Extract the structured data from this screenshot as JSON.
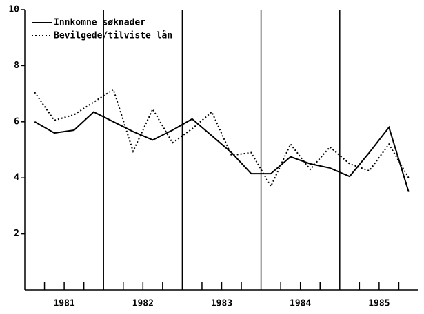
{
  "chart_data": {
    "type": "line",
    "x": [
      1981.125,
      1981.375,
      1981.625,
      1981.875,
      1982.125,
      1982.375,
      1982.625,
      1982.875,
      1983.125,
      1983.375,
      1983.625,
      1983.875,
      1984.125,
      1984.375,
      1984.625,
      1984.875,
      1985.125,
      1985.375,
      1985.625,
      1985.875
    ],
    "series": [
      {
        "name": "Innkomne søknader",
        "color": "#000000",
        "dash": "solid",
        "values": [
          6.0,
          5.6,
          5.7,
          6.35,
          6.0,
          5.65,
          5.35,
          5.7,
          6.1,
          5.5,
          4.9,
          4.15,
          4.15,
          4.75,
          4.5,
          4.35,
          4.05,
          4.9,
          5.8,
          3.5
        ]
      },
      {
        "name": "Bevilgede/tilviste lån",
        "color": "#000000",
        "dash": "dotted",
        "values": [
          7.05,
          6.05,
          6.25,
          6.7,
          7.15,
          4.95,
          6.45,
          5.25,
          5.75,
          6.35,
          4.8,
          4.9,
          3.7,
          5.2,
          4.3,
          5.1,
          4.5,
          4.25,
          5.2,
          4.0
        ]
      }
    ],
    "xlim": [
      1981,
      1986
    ],
    "xticks": [
      {
        "value": 1981.5,
        "label": "1981"
      },
      {
        "value": 1982.5,
        "label": "1982"
      },
      {
        "value": 1983.5,
        "label": "1983"
      },
      {
        "value": 1984.5,
        "label": "1984"
      },
      {
        "value": 1985.5,
        "label": "1985"
      }
    ],
    "xminorticks": [
      1981.25,
      1981.5,
      1981.75,
      1982.25,
      1982.5,
      1982.75,
      1983.25,
      1983.5,
      1983.75,
      1984.25,
      1984.5,
      1984.75,
      1985.25,
      1985.5,
      1985.75
    ],
    "vlines": [
      1982,
      1983,
      1984,
      1985
    ],
    "ylim": [
      0,
      10
    ],
    "yticks": [
      2,
      4,
      6,
      8,
      10
    ],
    "legend": "upper-left"
  }
}
